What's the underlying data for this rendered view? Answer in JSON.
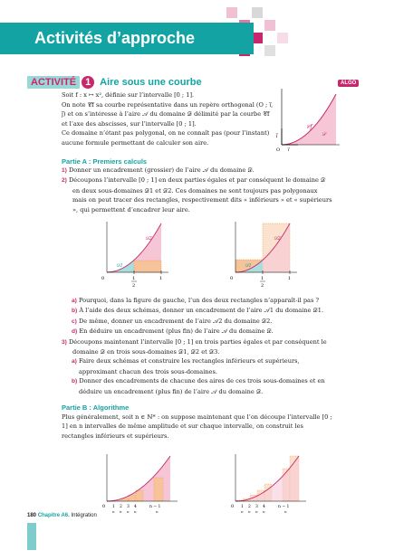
{
  "banner": {
    "title": "Activités d’approche"
  },
  "activity": {
    "label": "ACTIVITÉ",
    "number": "1",
    "title": "Aire sous une courbe",
    "tag": "ALGO"
  },
  "intro": {
    "line1": "Soit f : x ↦ x², définie sur l’intervalle [0 ; 1].",
    "line2": "On note 𝒞f sa courbe représentative dans un repère orthogonal (O ; i⃗, j⃗) et on s’intéresse à l’aire 𝒜 du domaine 𝒟 délimité par la courbe 𝒞f et l’axe des abscisses, sur l’intervalle [0 ; 1].",
    "line3": "Ce domaine n’étant pas polygonal, on ne connaît pas (pour l’instant) aucune formule permettant de calculer son aire."
  },
  "fig_intro": {
    "cf": "𝒞f",
    "d": "𝒟",
    "j": "j⃗",
    "i": "i⃗",
    "o": "O"
  },
  "partA": {
    "title": "Partie A : Premiers calculs",
    "items": [
      {
        "num": "1)",
        "text": "Donner un encadrement (grossier) de l’aire 𝒜 du domaine 𝒟."
      },
      {
        "num": "2)",
        "text": "Découpons l’intervalle [0 ; 1] en deux parties égales et par conséquent le domaine 𝒟 en deux sous-domaines 𝒟1 et 𝒟2. Ces domaines ne sont toujours pas polygonaux mais on peut tracer des rectangles, respectivement dits « inférieurs » et « supérieurs », qui permettent d’encadrer leur aire."
      }
    ],
    "questions": [
      {
        "num": "a)",
        "text": "Pourquoi, dans la figure de gauche, l’un des deux rectangles n’apparaît-il pas ?"
      },
      {
        "num": "b)",
        "text": "À l’aide des deux schémas, donner un encadrement de l’aire 𝒜1 du domaine 𝒟1."
      },
      {
        "num": "c)",
        "text": "De même, donner un encadrement de l’aire 𝒜2 du domaine 𝒟2."
      },
      {
        "num": "d)",
        "text": "En déduire un encadrement (plus fin) de l’aire 𝒜 du domaine 𝒟."
      }
    ],
    "item3": {
      "num": "3)",
      "text": "Découpons maintenant l’intervalle [0 ; 1] en trois parties égales et par conséquent le domaine 𝒟 en trois sous-domaines 𝒟1, 𝒟2 et 𝒟3."
    },
    "item3_sub": [
      {
        "num": "a)",
        "text": "Faire deux schémas et construire les rectangles inférieurs et supérieurs, approximant chacun des trois sous-domaines."
      },
      {
        "num": "b)",
        "text": "Donner des encadrements de chacune des aires de ces trois sous-domaines et en déduire un encadrement (plus fin) de l’aire 𝒜 du domaine 𝒟."
      }
    ],
    "fig_labels": {
      "o": "0",
      "half_num": "1",
      "half_den": "2",
      "one": "1",
      "d1": "𝒟1",
      "d2": "𝒟2"
    }
  },
  "partB": {
    "title": "Partie B : Algorithme",
    "text": "Plus généralement, soit n ∈ ℕ* : on suppose maintenant que l’on découpe l’intervalle [0 ; 1] en n intervalles de même amplitude et sur chaque intervalle, on construit les rectangles inférieurs et supérieurs.",
    "ticks_num": [
      "1",
      "2",
      "3",
      "4",
      "n − 1"
    ],
    "tick_den": "n",
    "zero": "0"
  },
  "footer": {
    "page": "180",
    "chapter": "Chapitre A6.",
    "topic": "Intégration"
  },
  "colors": {
    "teal": "#14a3a3",
    "magenta": "#c8286b",
    "pink": "#f6c6d6",
    "orange": "#f09030"
  }
}
